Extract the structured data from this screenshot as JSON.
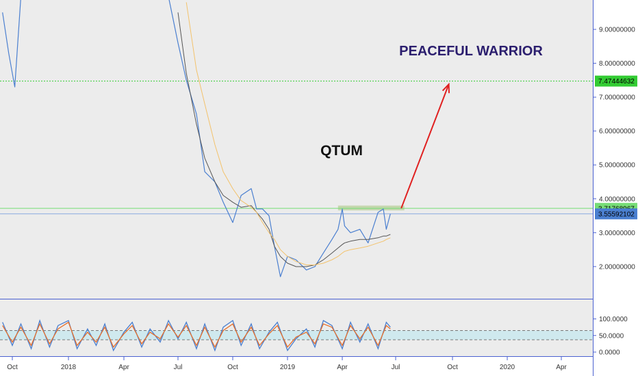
{
  "annotations": {
    "headline": "PEACEFUL WARRIOR",
    "symbol": "QTUM"
  },
  "colors": {
    "background": "#ececec",
    "price_line": "#4a7fd0",
    "ma_fast": "#555555",
    "ma_slow": "#f3c26b",
    "target_line": "#33cc33",
    "resistance_line": "#77dd77",
    "current_line": "#7aa0e0",
    "arrow": "#e02020",
    "zone": "#b8d09a",
    "stoch_k": "#4a7fd0",
    "stoch_d": "#e8702a",
    "stoch_band": "#cfe9ee",
    "headline": "#2b1e6e"
  },
  "chart_data": [
    {
      "type": "line",
      "title": "",
      "xlabel": "",
      "ylabel": "",
      "x_ticks": [
        "Oct",
        "2018",
        "Apr",
        "Jul",
        "Oct",
        "2019",
        "Apr",
        "Jul",
        "Oct",
        "2020",
        "Apr"
      ],
      "y_ticks": [
        "2.00000000",
        "3.00000000",
        "4.00000000",
        "5.00000000",
        "6.00000000",
        "7.00000000",
        "8.00000000",
        "9.00000000"
      ],
      "ylim": [
        1.0,
        10.0
      ],
      "grid": false,
      "price_labels": {
        "target": "7.47444632",
        "resistance": "3.71768967",
        "current": "3.55592102"
      },
      "levels": {
        "target": 7.474,
        "resistance": 3.718,
        "current": 3.556
      },
      "x": [
        "2017-09-15",
        "2017-09-25",
        "2017-10-05",
        "2017-10-15",
        "2017-10-25",
        "2018-01-01",
        "2018-01-08",
        "2018-01-15",
        "2018-01-25",
        "2018-02-05",
        "2018-02-15",
        "2018-03-01",
        "2018-03-15",
        "2018-04-01",
        "2018-04-15",
        "2018-05-01",
        "2018-05-15",
        "2018-06-01",
        "2018-06-15",
        "2018-07-01",
        "2018-07-15",
        "2018-08-01",
        "2018-08-15",
        "2018-09-01",
        "2018-09-15",
        "2018-10-01",
        "2018-10-15",
        "2018-11-01",
        "2018-11-10",
        "2018-11-20",
        "2018-12-01",
        "2018-12-10",
        "2018-12-20",
        "2019-01-01",
        "2019-01-15",
        "2019-02-01",
        "2019-02-15",
        "2019-03-01",
        "2019-03-15",
        "2019-03-25",
        "2019-04-01",
        "2019-04-05",
        "2019-04-15",
        "2019-05-01",
        "2019-05-15",
        "2019-06-01",
        "2019-06-10",
        "2019-06-15",
        "2019-06-22"
      ],
      "series": [
        {
          "values": [
            9.5,
            8.3,
            7.3,
            10.5,
            10.2,
            null,
            null,
            null,
            null,
            null,
            null,
            null,
            null,
            null,
            null,
            null,
            null,
            null,
            10.5,
            8.6,
            7.5,
            6.5,
            4.8,
            4.5,
            3.9,
            3.3,
            4.1,
            4.3,
            3.7,
            3.7,
            3.5,
            2.6,
            1.7,
            2.3,
            2.2,
            1.9,
            2.0,
            2.4,
            2.8,
            3.1,
            3.7,
            3.2,
            3.0,
            3.1,
            2.7,
            3.6,
            3.7,
            3.1,
            3.56
          ]
        },
        {
          "values": [
            null,
            null,
            null,
            null,
            null,
            null,
            null,
            null,
            null,
            null,
            null,
            null,
            null,
            null,
            null,
            null,
            null,
            null,
            null,
            9.5,
            7.7,
            6.2,
            5.2,
            4.5,
            4.1,
            3.9,
            3.75,
            3.8,
            3.6,
            3.4,
            3.1,
            2.6,
            2.3,
            2.1,
            2.0,
            2.0,
            2.05,
            2.2,
            2.4,
            2.55,
            2.65,
            2.7,
            2.75,
            2.8,
            2.8,
            2.85,
            2.9,
            2.9,
            2.95
          ]
        },
        {
          "values": [
            null,
            null,
            null,
            null,
            null,
            null,
            null,
            null,
            null,
            null,
            null,
            null,
            null,
            null,
            null,
            null,
            null,
            null,
            null,
            null,
            9.8,
            7.8,
            6.8,
            5.6,
            4.8,
            4.3,
            3.95,
            3.75,
            3.6,
            3.3,
            3.0,
            2.8,
            2.5,
            2.3,
            2.15,
            2.05,
            2.05,
            2.1,
            2.2,
            2.3,
            2.4,
            2.45,
            2.5,
            2.55,
            2.6,
            2.7,
            2.75,
            2.8,
            2.85
          ]
        }
      ],
      "projection": {
        "from_date": "2019-07-10",
        "from_value": 3.72,
        "to_date": "2019-09-25",
        "to_value": 7.38
      },
      "resistance_zone": {
        "start_date": "2019-03-25",
        "end_date": "2019-07-15",
        "value": 3.72
      }
    },
    {
      "type": "line",
      "title": "",
      "y_ticks": [
        "0.0000",
        "50.0000",
        "100.0000"
      ],
      "ylim": [
        -5,
        105
      ],
      "bands": [
        37,
        65
      ],
      "x": [
        "2017-09-15",
        "2017-10-01",
        "2017-10-15",
        "2017-11-01",
        "2017-11-15",
        "2017-12-01",
        "2017-12-15",
        "2018-01-01",
        "2018-01-15",
        "2018-02-01",
        "2018-02-15",
        "2018-03-01",
        "2018-03-15",
        "2018-04-01",
        "2018-04-15",
        "2018-05-01",
        "2018-05-15",
        "2018-06-01",
        "2018-06-15",
        "2018-07-01",
        "2018-07-15",
        "2018-08-01",
        "2018-08-15",
        "2018-09-01",
        "2018-09-15",
        "2018-10-01",
        "2018-10-15",
        "2018-11-01",
        "2018-11-15",
        "2018-12-01",
        "2018-12-15",
        "2019-01-01",
        "2019-01-15",
        "2019-02-01",
        "2019-02-15",
        "2019-03-01",
        "2019-03-15",
        "2019-04-01",
        "2019-04-15",
        "2019-05-01",
        "2019-05-15",
        "2019-06-01",
        "2019-06-15",
        "2019-06-22"
      ],
      "series": [
        {
          "values": [
            90,
            20,
            85,
            10,
            95,
            15,
            80,
            95,
            10,
            70,
            20,
            85,
            5,
            60,
            90,
            15,
            70,
            30,
            95,
            40,
            90,
            10,
            85,
            5,
            75,
            95,
            20,
            85,
            10,
            60,
            90,
            5,
            40,
            70,
            15,
            95,
            80,
            10,
            90,
            30,
            85,
            10,
            90,
            75
          ]
        },
        {
          "values": [
            80,
            30,
            75,
            20,
            85,
            25,
            70,
            90,
            20,
            60,
            30,
            75,
            15,
            55,
            80,
            25,
            60,
            40,
            85,
            45,
            80,
            20,
            75,
            15,
            65,
            85,
            30,
            75,
            20,
            55,
            80,
            15,
            45,
            60,
            25,
            85,
            75,
            20,
            80,
            40,
            75,
            20,
            80,
            70
          ]
        }
      ]
    }
  ]
}
